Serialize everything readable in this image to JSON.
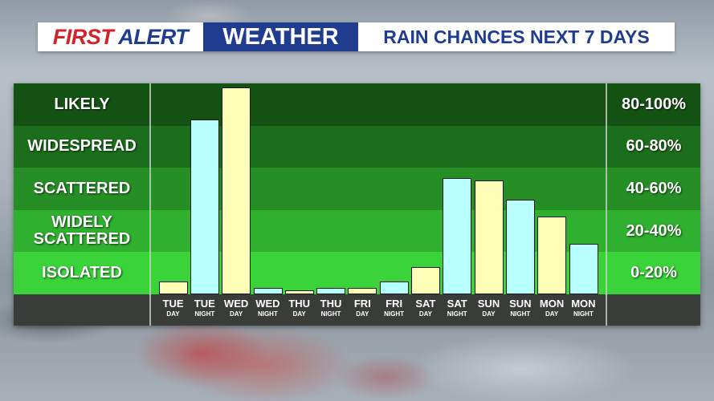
{
  "header": {
    "brand_first": "FIRST",
    "brand_alert": "ALERT",
    "brand_weather": "WEATHER",
    "subtitle": "RAIN CHANCES NEXT 7 DAYS"
  },
  "colors": {
    "brand_red": "#d2232a",
    "brand_blue": "#1f3c8e",
    "day_bar": "#ffffb8",
    "night_bar": "#b8ffff"
  },
  "chart_data": {
    "type": "bar",
    "title": "RAIN CHANCES NEXT 7 DAYS",
    "ylim": [
      0,
      100
    ],
    "categories": [
      {
        "day": "TUE",
        "time": "DAY"
      },
      {
        "day": "TUE",
        "time": "NIGHT"
      },
      {
        "day": "WED",
        "time": "DAY"
      },
      {
        "day": "WED",
        "time": "NIGHT"
      },
      {
        "day": "THU",
        "time": "DAY"
      },
      {
        "day": "THU",
        "time": "NIGHT"
      },
      {
        "day": "FRI",
        "time": "DAY"
      },
      {
        "day": "FRI",
        "time": "NIGHT"
      },
      {
        "day": "SAT",
        "time": "DAY"
      },
      {
        "day": "SAT",
        "time": "NIGHT"
      },
      {
        "day": "SUN",
        "time": "DAY"
      },
      {
        "day": "SUN",
        "time": "NIGHT"
      },
      {
        "day": "MON",
        "time": "DAY"
      },
      {
        "day": "MON",
        "time": "NIGHT"
      }
    ],
    "values": [
      6,
      83,
      98,
      3,
      2,
      3,
      3,
      6,
      13,
      55,
      54,
      45,
      37,
      24
    ],
    "bands": [
      {
        "label": "LIKELY",
        "range": "80-100%",
        "color": "#145214"
      },
      {
        "label": "WIDESPREAD",
        "range": "60-80%",
        "color": "#1b6e1b"
      },
      {
        "label": "SCATTERED",
        "range": "40-60%",
        "color": "#258f25"
      },
      {
        "label": "WIDELY SCATTERED",
        "range": "20-40%",
        "color": "#2fb02f"
      },
      {
        "label": "ISOLATED",
        "range": "0-20%",
        "color": "#3ad33a"
      }
    ]
  }
}
